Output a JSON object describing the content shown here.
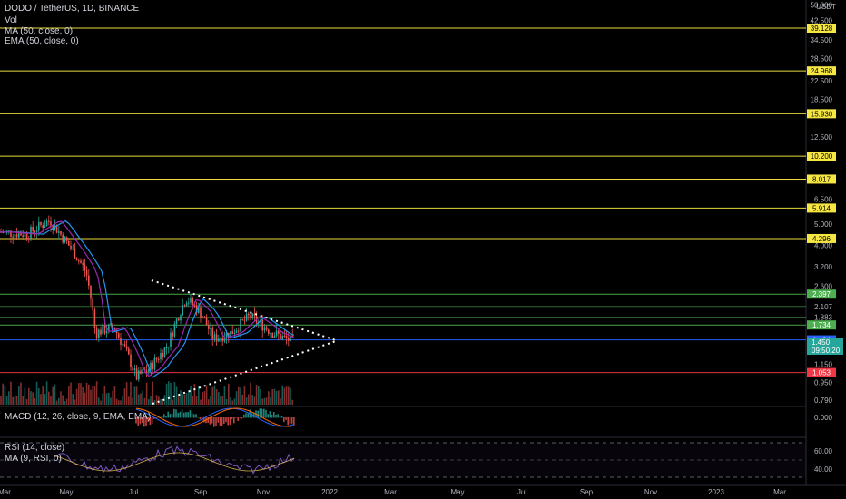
{
  "header": {
    "symbol_line": "DODO / TetherUS, 1D, BINANCE",
    "indicators": [
      "Vol",
      "MA (50, close, 0)",
      "EMA (50, close, 0)"
    ],
    "macd_label": "MACD (12, 26, close, 9, EMA, EMA)",
    "rsi_label": "RSI (14, close)",
    "rsi_ma_label": "MA (9, RSI, 0)"
  },
  "price_axis": {
    "currency": "USDT",
    "ticks": [
      "50.000",
      "42.500",
      "34.500",
      "28.500",
      "22.500",
      "18.500",
      "12.500",
      "6.500",
      "5.000",
      "4.000",
      "3.200",
      "2.600",
      "2.107",
      "1.883",
      "1.150",
      "0.950",
      "0.790"
    ],
    "macd_ticks": [
      "0.000"
    ],
    "rsi_ticks": [
      "60.00",
      "40.00"
    ]
  },
  "levels": [
    {
      "value": "39.128",
      "color": "#f5e642",
      "kind": "yellow"
    },
    {
      "value": "24.968",
      "color": "#f5e642",
      "kind": "yellow"
    },
    {
      "value": "15.930",
      "color": "#f5e642",
      "kind": "yellow"
    },
    {
      "value": "10.200",
      "color": "#f5e642",
      "kind": "yellow"
    },
    {
      "value": "8.017",
      "color": "#f5e642",
      "kind": "yellow"
    },
    {
      "value": "5.914",
      "color": "#f5e642",
      "kind": "yellow"
    },
    {
      "value": "4.296",
      "color": "#f5e642",
      "kind": "yellow"
    },
    {
      "value": "2.397",
      "color": "#4caf50",
      "kind": "green"
    },
    {
      "value": "1.734",
      "color": "#4caf50",
      "kind": "green"
    },
    {
      "value": "1.484",
      "color": "#2962ff",
      "kind": "blue"
    },
    {
      "value": "1.053",
      "color": "#f23645",
      "kind": "red"
    }
  ],
  "last_price": {
    "value": "1.450",
    "countdown": "09:50:20",
    "color": "#26a69a"
  },
  "time_axis": [
    "Mar",
    "May",
    "Jul",
    "Sep",
    "Nov",
    "2022",
    "Mar",
    "May",
    "Jul",
    "Sep",
    "Nov",
    "2023",
    "Mar"
  ],
  "colors": {
    "background": "#000000",
    "up": "#26a69a",
    "down": "#ef5350",
    "ma": "#2196f3",
    "ema": "#9c27b0",
    "triangle": "#ffffff",
    "rsi": "#7e57c2"
  }
}
